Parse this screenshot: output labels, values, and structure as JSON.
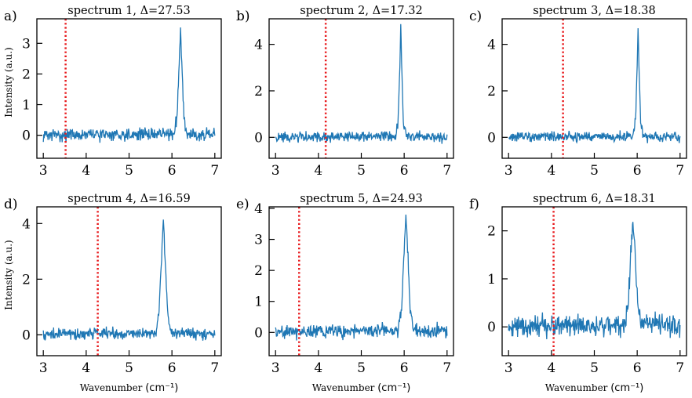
{
  "chart_data": [
    {
      "type": "line",
      "panel_label": "a)",
      "title": "spectrum 1, Δ=27.53",
      "xlabel": "",
      "ylabel": "Intensity (a.u.)",
      "xlim": [
        2.85,
        7.15
      ],
      "ylim": [
        -0.75,
        3.8
      ],
      "xticks": [
        3,
        4,
        5,
        6,
        7
      ],
      "yticks": [
        0,
        1,
        2,
        3
      ],
      "marker_x": 3.52,
      "noise_level": 0.14,
      "series": [
        {
          "x": [
            3.0,
            6.05,
            6.12,
            6.17,
            6.2,
            6.23,
            6.28,
            6.35,
            7.0
          ],
          "y": [
            0,
            0.05,
            0.6,
            2.4,
            3.55,
            2.4,
            0.6,
            0.05,
            0
          ]
        }
      ]
    },
    {
      "type": "line",
      "panel_label": "b)",
      "title": "spectrum 2, Δ=17.32",
      "xlabel": "",
      "ylabel": "",
      "xlim": [
        2.85,
        7.15
      ],
      "ylim": [
        -0.9,
        5.1
      ],
      "xticks": [
        3,
        4,
        5,
        6,
        7
      ],
      "yticks": [
        0,
        2,
        4
      ],
      "marker_x": 4.17,
      "noise_level": 0.15,
      "series": [
        {
          "x": [
            3.0,
            5.8,
            5.86,
            5.9,
            5.92,
            5.94,
            5.98,
            6.04,
            7.0
          ],
          "y": [
            0,
            0.05,
            0.7,
            3.2,
            4.85,
            3.2,
            0.7,
            0.05,
            0
          ]
        }
      ]
    },
    {
      "type": "line",
      "panel_label": "c)",
      "title": "spectrum 3, Δ=18.38",
      "xlabel": "",
      "ylabel": "",
      "xlim": [
        2.85,
        7.15
      ],
      "ylim": [
        -0.9,
        5.1
      ],
      "xticks": [
        3,
        4,
        5,
        6,
        7
      ],
      "yticks": [
        0,
        2,
        4
      ],
      "marker_x": 4.27,
      "noise_level": 0.15,
      "series": [
        {
          "x": [
            3.0,
            5.9,
            5.96,
            6.0,
            6.02,
            6.04,
            6.08,
            6.14,
            7.0
          ],
          "y": [
            0,
            0.05,
            0.7,
            3.2,
            4.8,
            3.2,
            0.7,
            0.05,
            0
          ]
        }
      ]
    },
    {
      "type": "line",
      "panel_label": "d)",
      "title": "spectrum 4, Δ=16.59",
      "xlabel": "",
      "ylabel": "Intensity (a.u.)",
      "xlim": [
        2.85,
        7.15
      ],
      "ylim": [
        -0.75,
        4.6
      ],
      "xticks": [
        3,
        4,
        5,
        6,
        7
      ],
      "yticks": [
        0,
        2,
        4
      ],
      "marker_x": 4.27,
      "noise_level": 0.15,
      "series": [
        {
          "x": [
            3.0,
            5.62,
            5.7,
            5.76,
            5.8,
            5.84,
            5.9,
            5.98,
            7.0
          ],
          "y": [
            0,
            0.08,
            0.8,
            2.8,
            4.25,
            2.8,
            0.8,
            0.08,
            0
          ]
        }
      ]
    },
    {
      "type": "line",
      "panel_label": "e)",
      "title": "spectrum 5, Δ=24.93",
      "xlabel": "Wavenumber",
      "ylabel": "",
      "xlim": [
        2.85,
        7.15
      ],
      "ylim": [
        -0.75,
        4.05
      ],
      "xticks": [
        3,
        4,
        5,
        6,
        7
      ],
      "yticks": [
        0,
        1,
        2,
        3,
        4
      ],
      "marker_x": 3.55,
      "noise_level": 0.16,
      "series": [
        {
          "x": [
            3.0,
            5.86,
            5.94,
            6.0,
            6.04,
            6.08,
            6.14,
            6.22,
            7.0
          ],
          "y": [
            0,
            0.08,
            0.8,
            2.6,
            3.8,
            2.6,
            0.8,
            0.08,
            0
          ]
        }
      ]
    },
    {
      "type": "line",
      "panel_label": "f)",
      "title": "spectrum 6, Δ=18.31",
      "xlabel": "",
      "ylabel": "",
      "xlim": [
        2.85,
        7.15
      ],
      "ylim": [
        -0.6,
        2.5
      ],
      "xticks": [
        3,
        4,
        5,
        6,
        7
      ],
      "yticks": [
        0,
        1,
        2
      ],
      "marker_x": 4.05,
      "noise_level": 0.16,
      "series": [
        {
          "x": [
            3.0,
            5.72,
            5.8,
            5.86,
            5.9,
            5.94,
            6.0,
            6.08,
            7.0
          ],
          "y": [
            0,
            0.05,
            0.6,
            1.7,
            2.3,
            1.7,
            0.6,
            0.05,
            0
          ]
        }
      ]
    }
  ],
  "x_unit": "(cm⁻¹)",
  "colors": {
    "line": "#1f77b4",
    "marker": "#e8191c"
  }
}
